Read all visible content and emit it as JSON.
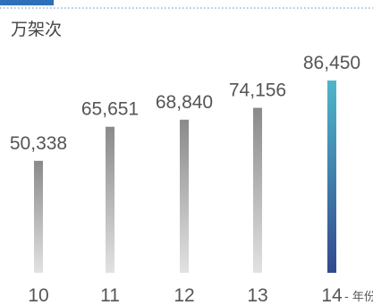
{
  "chart_data": {
    "type": "bar",
    "unit_label": "万架次",
    "categories": [
      "10",
      "11",
      "12",
      "13",
      "14"
    ],
    "series": [
      {
        "values": [
          50338,
          65651,
          68840,
          74156,
          86450
        ]
      }
    ],
    "value_labels": [
      "50,338",
      "65,651",
      "68,840",
      "74,156",
      "86,450"
    ],
    "x_axis_suffix": "年份",
    "ylim": [
      0,
      86450
    ],
    "grid": false,
    "colors": {
      "bar_gray_top": "#8a8a8a",
      "bar_gray_bottom": "#e2e2e2",
      "bar_highlight_top": "#4fb6c9",
      "bar_highlight_bottom": "#324a8e",
      "accent": "#2d6fb8",
      "dotted_rule": "#8fb3d9"
    }
  }
}
